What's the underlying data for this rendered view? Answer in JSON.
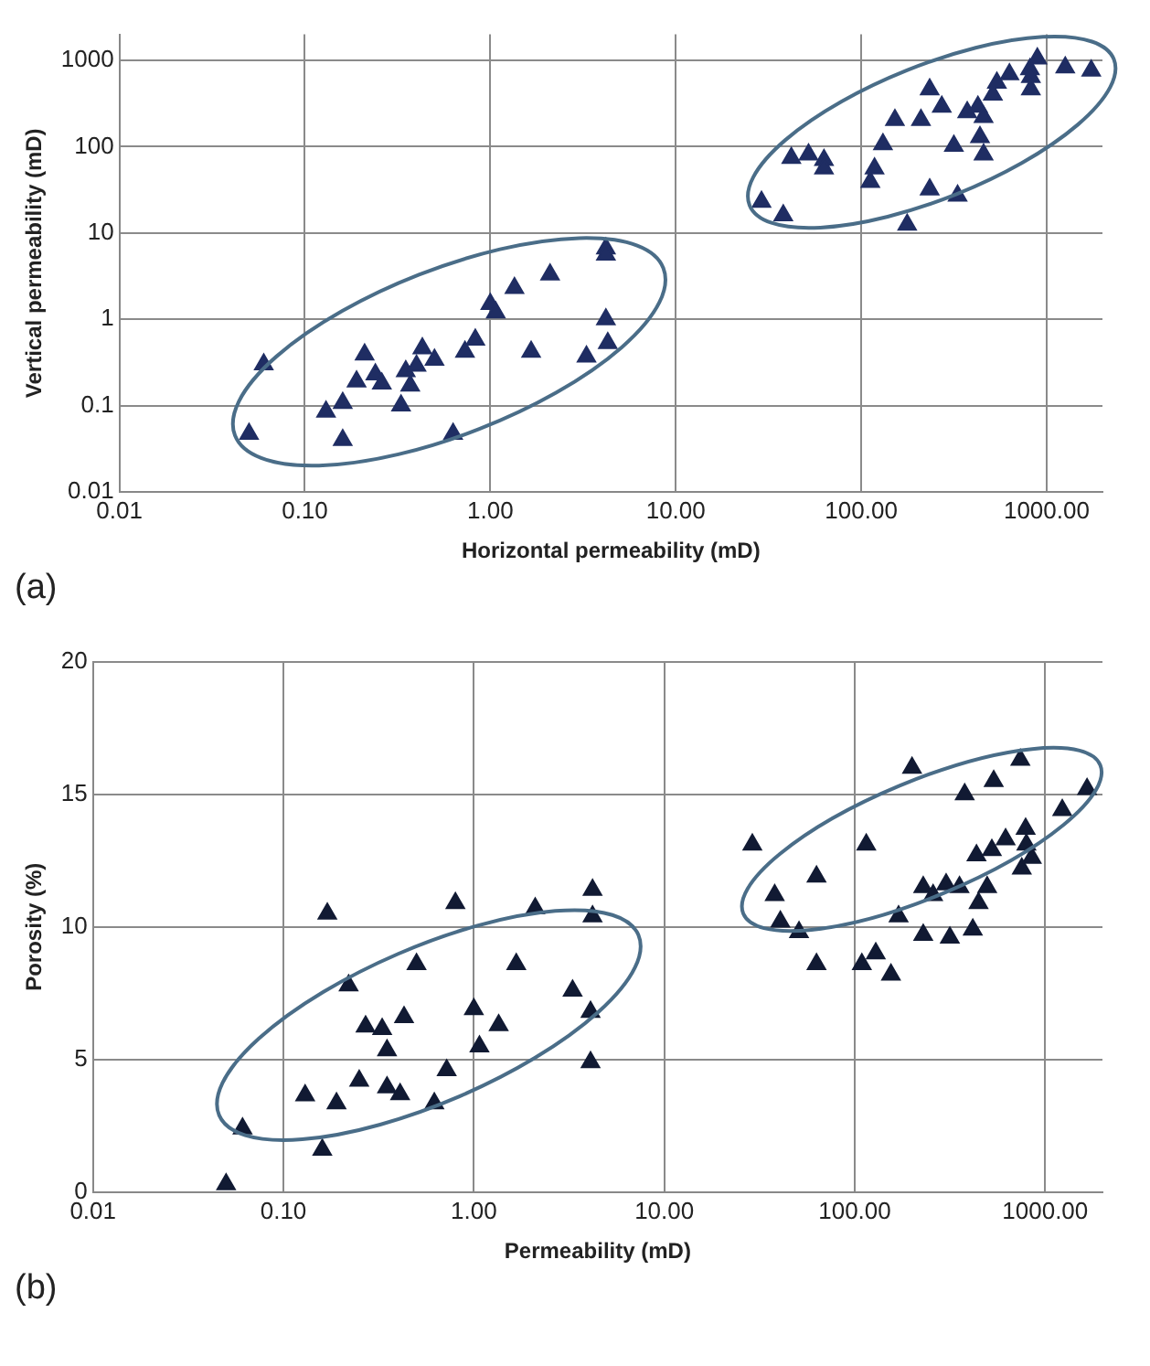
{
  "chart_data": [
    {
      "type": "scatter",
      "xlabel": "Horizontal permeability (mD)",
      "ylabel": "Vertical permeability (mD)",
      "annotations": [
        "(a)"
      ],
      "log": "xy",
      "grid": true,
      "marker": "triangle",
      "xlim": [
        0.01,
        2000
      ],
      "ylim": [
        0.01,
        2000
      ],
      "xticks": [
        0.01,
        {
          "value": 0.1,
          "label": "0.10"
        },
        {
          "value": 1,
          "label": "1.00"
        },
        {
          "value": 10,
          "label": "10.00"
        },
        {
          "value": 100,
          "label": "100.00"
        },
        {
          "value": 1000,
          "label": "1000.00"
        }
      ],
      "yticks": [
        0.01,
        0.1,
        1,
        10,
        100,
        1000
      ],
      "series": [
        {
          "color": "#1f2d63",
          "x": [
            0.05,
            0.06,
            0.13,
            0.16,
            0.16,
            0.19,
            0.21,
            0.24,
            0.26,
            0.33,
            0.35,
            0.37,
            0.4,
            0.43,
            0.5,
            0.63,
            0.73,
            0.83,
            1.0,
            1.07,
            1.35,
            2.1,
            1.66,
            3.3,
            4.2,
            4.2,
            4.2,
            4.3,
            29,
            38,
            42,
            52,
            63,
            63,
            112,
            118,
            131,
            152,
            177,
            210,
            234,
            272,
            234,
            316,
            331,
            373,
            426,
            457,
            437,
            457,
            513,
            539,
            630,
            813,
            822,
            822,
            891,
            1260,
            1740
          ],
          "values": [
            0.047,
            0.3,
            0.085,
            0.107,
            0.04,
            0.19,
            0.39,
            0.23,
            0.18,
            0.1,
            0.25,
            0.17,
            0.29,
            0.46,
            0.34,
            0.047,
            0.42,
            0.58,
            1.5,
            1.2,
            2.3,
            3.3,
            0.42,
            0.37,
            6.6,
            5.6,
            1.0,
            0.53,
            23,
            16,
            74,
            81,
            70,
            56,
            39,
            56,
            107,
            204,
            12.5,
            204,
            460,
            290,
            32,
            102,
            27,
            250,
            290,
            220,
            129,
            81,
            400,
            550,
            690,
            790,
            640,
            460,
            1050,
            830,
            760
          ]
        }
      ]
    },
    {
      "type": "scatter",
      "xlabel": "Permeability (mD)",
      "ylabel": "Porosity (%)",
      "annotations": [
        "(b)"
      ],
      "log": "x",
      "grid": true,
      "marker": "triangle",
      "xlim": [
        0.01,
        2000
      ],
      "ylim": [
        0,
        20
      ],
      "xticks": [
        0.01,
        {
          "value": 0.1,
          "label": "0.10"
        },
        {
          "value": 1,
          "label": "1.00"
        },
        {
          "value": 10,
          "label": "10.00"
        },
        {
          "value": 100,
          "label": "100.00"
        },
        {
          "value": 1000,
          "label": "1000.00"
        }
      ],
      "yticks": [
        0,
        5,
        10,
        15,
        20
      ],
      "series": [
        {
          "color": "#111a33",
          "x": [
            0.05,
            0.061,
            0.13,
            0.16,
            0.17,
            0.19,
            0.22,
            0.25,
            0.27,
            0.33,
            0.35,
            0.35,
            0.41,
            0.43,
            0.5,
            0.62,
            0.72,
            0.8,
            1.0,
            1.07,
            2.1,
            1.67,
            1.35,
            3.3,
            4.1,
            4.2,
            4.2,
            4.1,
            29,
            38,
            40.7,
            51,
            63,
            63,
            109,
            115,
            129,
            155,
            170,
            200,
            229,
            229,
            258,
            302,
            316,
            355,
            378,
            417,
            436,
            447,
            496,
            525,
            537,
            620,
            741,
            754,
            790,
            797,
            851,
            1230,
            1660
          ],
          "values": [
            0.3,
            2.4,
            3.65,
            1.6,
            10.5,
            3.35,
            7.8,
            4.2,
            6.25,
            6.15,
            5.35,
            3.95,
            3.7,
            6.6,
            8.6,
            3.35,
            4.6,
            10.9,
            6.9,
            5.5,
            10.7,
            8.6,
            6.3,
            7.6,
            6.8,
            11.4,
            10.4,
            4.9,
            13.1,
            11.2,
            10.2,
            9.8,
            11.9,
            8.6,
            8.6,
            13.1,
            9.0,
            8.2,
            10.4,
            16.0,
            11.5,
            9.7,
            11.2,
            11.6,
            9.6,
            11.5,
            15.0,
            9.9,
            12.7,
            10.9,
            11.5,
            12.9,
            15.5,
            13.3,
            16.3,
            12.2,
            13.7,
            13.1,
            12.6,
            14.4,
            15.2
          ]
        }
      ]
    }
  ]
}
